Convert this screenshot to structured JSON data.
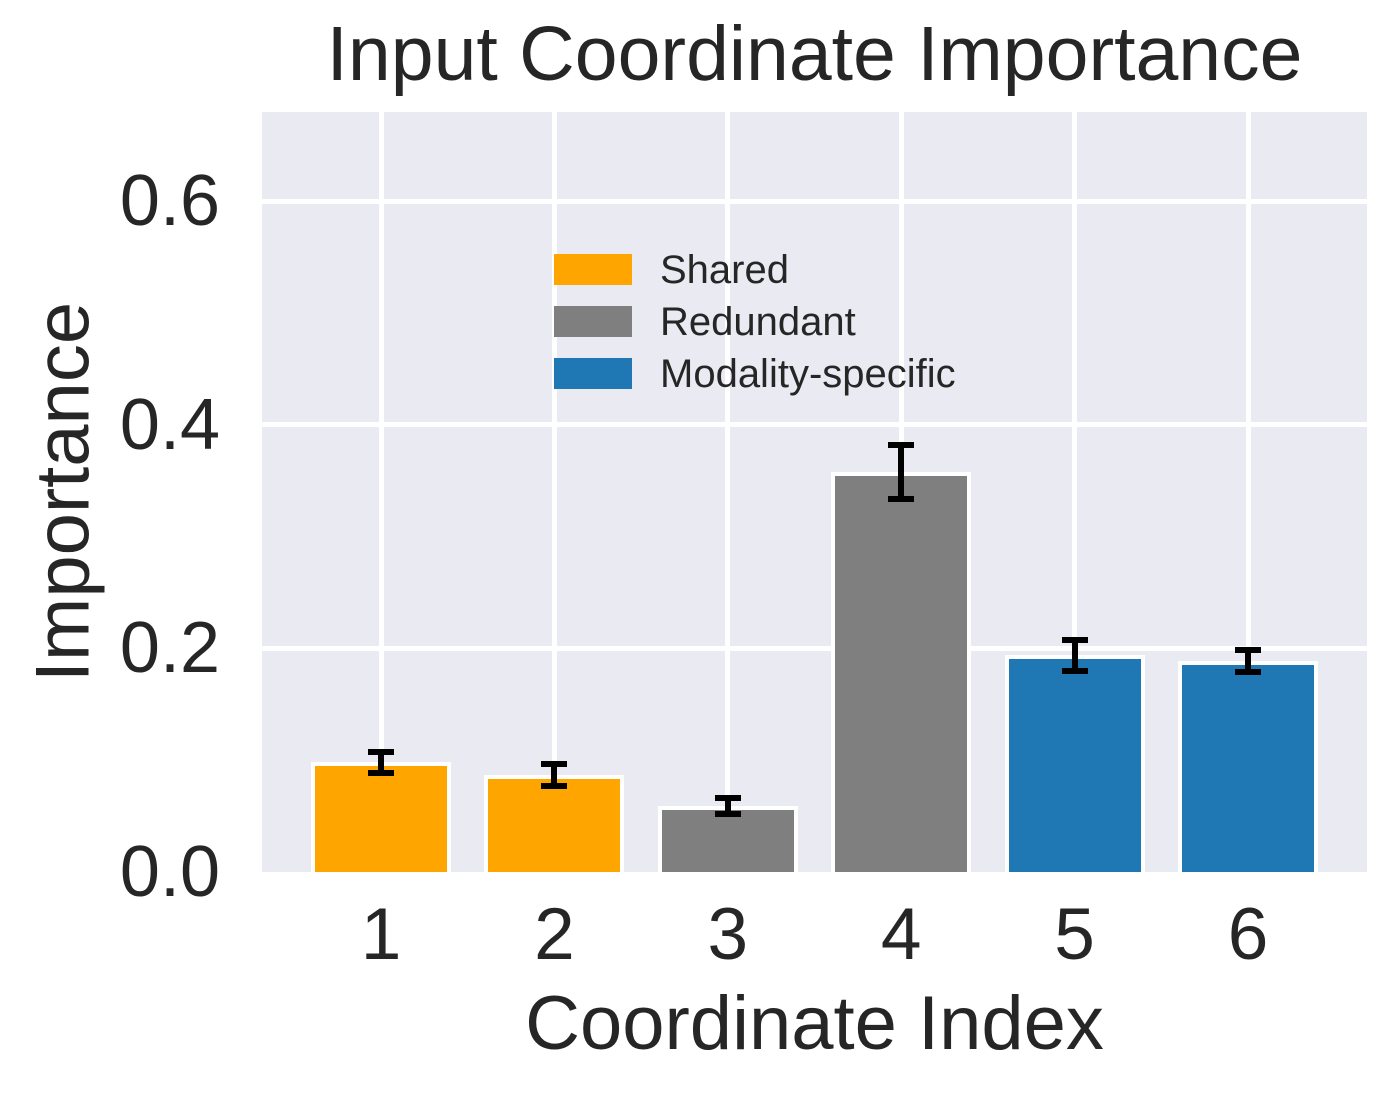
{
  "chart_data": {
    "type": "bar",
    "title": "Input Coordinate Importance",
    "xlabel": "Coordinate Index",
    "ylabel": "Importance",
    "categories": [
      "1",
      "2",
      "3",
      "4",
      "5",
      "6"
    ],
    "values": [
      0.098,
      0.087,
      0.059,
      0.358,
      0.194,
      0.189
    ],
    "errors": [
      0.009,
      0.01,
      0.007,
      0.024,
      0.014,
      0.01
    ],
    "bar_groups": [
      "Shared",
      "Shared",
      "Redundant",
      "Redundant",
      "Modality-specific",
      "Modality-specific"
    ],
    "bar_colors": [
      "#FFA500",
      "#FFA500",
      "#7F7F7F",
      "#7F7F7F",
      "#1F77B4",
      "#1F77B4"
    ],
    "legend": {
      "position": "upper left",
      "entries": [
        {
          "label": "Shared",
          "color": "#FFA500"
        },
        {
          "label": "Redundant",
          "color": "#7F7F7F"
        },
        {
          "label": "Modality-specific",
          "color": "#1F77B4"
        }
      ]
    },
    "yticks": {
      "values": [
        0.0,
        0.2,
        0.4,
        0.6
      ],
      "labels": [
        "0.0",
        "0.2",
        "0.4",
        "0.6"
      ]
    },
    "ylim": [
      0,
      0.68
    ],
    "grid": true,
    "styles": {
      "axes_background": "#EAEAF2",
      "gridline_color": "#FFFFFF",
      "bar_edge_color": "#FFFFFF",
      "errorbar_color": "#000000",
      "text_color": "#262626",
      "figure_background": "#FFFFFF"
    }
  }
}
